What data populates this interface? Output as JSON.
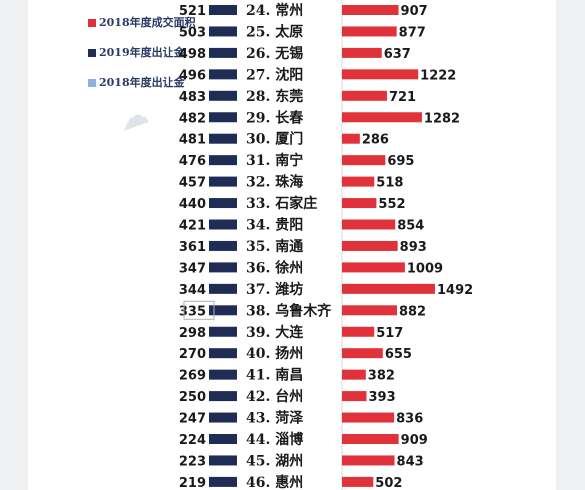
{
  "legend": {
    "land_2018": "2018年度成交面积",
    "sales_2019": "2019年度出让金",
    "sales_2018": "2018年度出让金"
  },
  "colors": {
    "land_bar": "#e0323a",
    "sales_2019_bar": "#1f2d56",
    "sales_2018_bar": "#8db2dd"
  },
  "chart_data": {
    "type": "bar",
    "categories": [
      "24. 常州",
      "25. 太原",
      "26. 无锡",
      "27. 沈阳",
      "28. 东莞",
      "29. 长春",
      "30. 厦门",
      "31. 南宁",
      "32. 珠海",
      "33. 石家庄",
      "34. 贵阳",
      "35. 南通",
      "36. 徐州",
      "37. 潍坊",
      "38. 乌鲁木齐",
      "39. 大连",
      "40. 扬州",
      "41. 南昌",
      "42. 台州",
      "43. 菏泽",
      "44. 淄博",
      "45. 湖州",
      "46. 惠州"
    ],
    "series": [
      {
        "name": "2019年度出让金",
        "values": [
          521,
          503,
          498,
          496,
          483,
          482,
          481,
          476,
          457,
          440,
          421,
          361,
          347,
          344,
          335,
          298,
          270,
          269,
          250,
          247,
          224,
          223,
          219
        ]
      },
      {
        "name": "2018年度成交面积",
        "values": [
          907,
          877,
          637,
          1222,
          721,
          1282,
          286,
          695,
          518,
          552,
          854,
          893,
          1009,
          1492,
          882,
          517,
          655,
          382,
          393,
          836,
          909,
          843,
          502
        ]
      }
    ]
  }
}
